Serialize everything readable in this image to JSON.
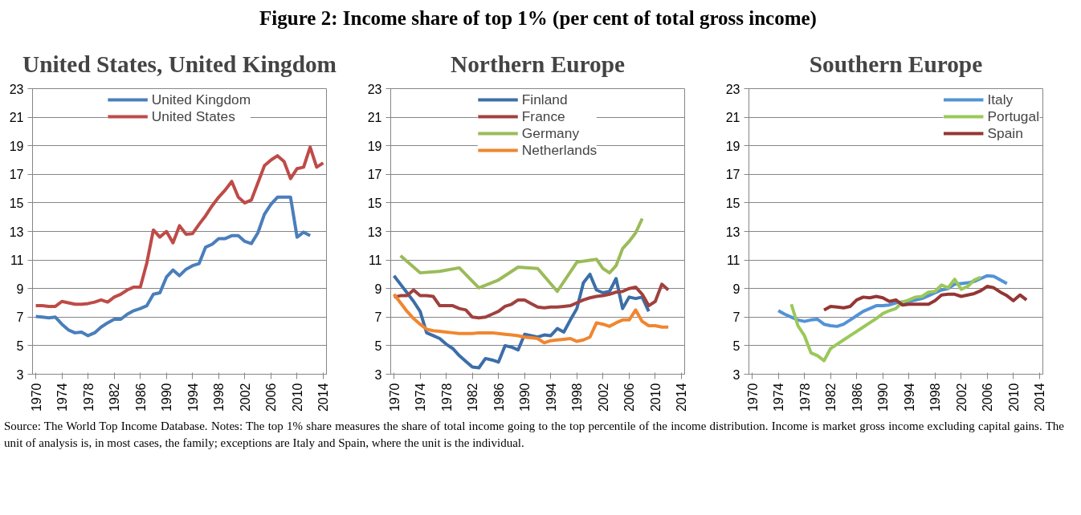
{
  "chart_data": [
    {
      "type": "line",
      "title": "United States, United Kingdom",
      "annotations": [
        "Figure 2: Income share of top 1% (per cent of total gross income)",
        "Source: The World Top Income Database. Notes: The top 1% share measures the share of total income going to the top percentile of the income distribution. Income is market gross income excluding capital gains. The unit of analysis is, in most cases, the family; exceptions are Italy and Spain, where the unit is the individual."
      ],
      "x": [
        1970,
        1971,
        1972,
        1973,
        1974,
        1975,
        1976,
        1977,
        1978,
        1979,
        1980,
        1981,
        1982,
        1983,
        1984,
        1985,
        1986,
        1987,
        1988,
        1989,
        1990,
        1991,
        1992,
        1993,
        1994,
        1995,
        1996,
        1997,
        1998,
        1999,
        2000,
        2001,
        2002,
        2003,
        2004,
        2005,
        2006,
        2007,
        2008,
        2009,
        2010,
        2011,
        2012,
        2013,
        2014
      ],
      "xlim": [
        1969.5,
        2014.5
      ],
      "xticks": [
        1970,
        1974,
        1978,
        1982,
        1986,
        1990,
        1994,
        1998,
        2002,
        2006,
        2010,
        2014
      ],
      "ylim": [
        3,
        23
      ],
      "yticks": [
        3,
        5,
        7,
        9,
        11,
        13,
        15,
        17,
        19,
        21,
        23
      ],
      "grid": "y",
      "legend": "top",
      "series": [
        {
          "name": "United Kingdom",
          "color": "#4a7ebb",
          "values": [
            7.05,
            7.0,
            6.95,
            7.0,
            6.5,
            6.1,
            5.9,
            5.95,
            5.7,
            5.9,
            6.3,
            6.6,
            6.85,
            6.85,
            7.2,
            7.45,
            7.6,
            7.8,
            8.6,
            8.7,
            9.8,
            10.3,
            9.9,
            10.35,
            10.6,
            10.75,
            11.9,
            12.1,
            12.5,
            12.5,
            12.7,
            12.7,
            12.3,
            12.15,
            12.9,
            14.2,
            14.9,
            15.4,
            15.4,
            15.4,
            12.6,
            12.95,
            12.7,
            null,
            null
          ]
        },
        {
          "name": "United States",
          "color": "#be4b48",
          "values": [
            7.8,
            7.8,
            7.75,
            7.75,
            8.1,
            8.0,
            7.9,
            7.9,
            7.95,
            8.05,
            8.2,
            8.05,
            8.4,
            8.6,
            8.9,
            9.1,
            9.1,
            10.8,
            13.1,
            12.6,
            13.0,
            12.2,
            13.4,
            12.8,
            12.85,
            13.5,
            14.1,
            14.8,
            15.4,
            15.9,
            16.5,
            15.4,
            15.0,
            15.2,
            16.4,
            17.6,
            18.0,
            18.3,
            17.9,
            16.7,
            17.4,
            17.5,
            18.9,
            17.5,
            17.8
          ]
        }
      ]
    },
    {
      "type": "line",
      "title": "Northern Europe",
      "x": [
        1970,
        1971,
        1972,
        1973,
        1974,
        1975,
        1976,
        1977,
        1978,
        1979,
        1980,
        1981,
        1982,
        1983,
        1984,
        1985,
        1986,
        1987,
        1988,
        1989,
        1990,
        1991,
        1992,
        1993,
        1994,
        1995,
        1996,
        1997,
        1998,
        1999,
        2000,
        2001,
        2002,
        2003,
        2004,
        2005,
        2006,
        2007,
        2008,
        2009,
        2010,
        2011,
        2012
      ],
      "xlim": [
        1969.5,
        2014.5
      ],
      "xticks": [
        1970,
        1974,
        1978,
        1982,
        1986,
        1990,
        1994,
        1998,
        2002,
        2006,
        2010,
        2014
      ],
      "ylim": [
        3,
        23
      ],
      "yticks": [
        3,
        5,
        7,
        9,
        11,
        13,
        15,
        17,
        19,
        21,
        23
      ],
      "grid": "y",
      "legend": "top",
      "series": [
        {
          "name": "Finland",
          "color": "#3c6ea8",
          "values": [
            9.9,
            9.3,
            8.7,
            8.1,
            7.4,
            5.9,
            5.7,
            5.5,
            5.1,
            4.8,
            4.3,
            3.9,
            3.5,
            3.45,
            4.1,
            4.0,
            3.85,
            5.0,
            4.9,
            4.7,
            5.8,
            5.7,
            5.6,
            5.75,
            5.7,
            6.2,
            5.95,
            6.8,
            7.6,
            9.4,
            10.0,
            8.9,
            8.7,
            8.8,
            9.7,
            7.6,
            8.4,
            8.3,
            8.4,
            7.4,
            null,
            null,
            null
          ]
        },
        {
          "name": "France",
          "color": "#a0413e",
          "values": [
            8.4,
            8.5,
            8.5,
            8.9,
            8.5,
            8.5,
            8.45,
            7.8,
            7.8,
            7.8,
            7.6,
            7.5,
            7.0,
            6.95,
            7.0,
            7.2,
            7.4,
            7.75,
            7.9,
            8.2,
            8.2,
            7.95,
            7.7,
            7.65,
            7.7,
            7.7,
            7.75,
            7.8,
            8.0,
            8.2,
            8.35,
            8.45,
            8.5,
            8.6,
            8.75,
            8.8,
            9.0,
            9.1,
            8.6,
            7.8,
            8.1,
            9.3,
            8.9
          ]
        },
        {
          "name": "Germany",
          "color": "#9bbb59",
          "x": [
            1971,
            1974,
            1977,
            1980,
            1983,
            1986,
            1989,
            1992,
            1995,
            1998,
            2001,
            2002,
            2003,
            2004,
            2005,
            2006,
            2007,
            2008
          ],
          "values": [
            11.3,
            10.1,
            10.2,
            10.45,
            9.05,
            9.6,
            10.5,
            10.4,
            8.8,
            10.85,
            11.05,
            10.4,
            10.1,
            10.6,
            11.8,
            12.3,
            12.9,
            13.9
          ]
        },
        {
          "name": "Netherlands",
          "color": "#f08630",
          "values": [
            8.6,
            8.0,
            7.4,
            6.9,
            6.5,
            6.15,
            6.05,
            6.0,
            5.95,
            5.9,
            5.85,
            5.85,
            5.85,
            5.9,
            5.9,
            5.9,
            5.85,
            5.8,
            5.75,
            5.7,
            5.6,
            5.55,
            5.5,
            5.2,
            5.35,
            5.4,
            5.45,
            5.5,
            5.3,
            5.4,
            5.6,
            6.6,
            6.5,
            6.35,
            6.6,
            6.8,
            6.8,
            7.5,
            6.7,
            6.4,
            6.4,
            6.3,
            6.3
          ]
        }
      ]
    },
    {
      "type": "line",
      "title": "Southern Europe",
      "x": [
        1974,
        1975,
        1976,
        1977,
        1978,
        1979,
        1980,
        1981,
        1982,
        1983,
        1984,
        1985,
        1986,
        1987,
        1988,
        1989,
        1990,
        1991,
        1992,
        1993,
        1994,
        1995,
        1996,
        1997,
        1998,
        1999,
        2000,
        2001,
        2002,
        2003,
        2004,
        2005,
        2006,
        2007,
        2008,
        2009,
        2010,
        2011,
        2012
      ],
      "xlim": [
        1969.5,
        2014.5
      ],
      "xticks": [
        1970,
        1974,
        1978,
        1982,
        1986,
        1990,
        1994,
        1998,
        2002,
        2006,
        2010,
        2014
      ],
      "ylim": [
        3,
        23
      ],
      "yticks": [
        3,
        5,
        7,
        9,
        11,
        13,
        15,
        17,
        19,
        21,
        23
      ],
      "grid": "y",
      "legend": "top right",
      "series": [
        {
          "name": "Italy",
          "color": "#5393d6",
          "values": [
            7.45,
            7.2,
            7.0,
            6.8,
            6.7,
            6.8,
            6.85,
            6.5,
            6.4,
            6.35,
            6.5,
            6.8,
            7.1,
            7.4,
            7.6,
            7.8,
            7.8,
            7.85,
            8.0,
            8.05,
            8.1,
            8.2,
            8.3,
            8.5,
            8.7,
            8.9,
            9.0,
            9.3,
            9.35,
            9.4,
            9.5,
            9.7,
            9.9,
            9.85,
            9.6,
            9.35,
            null,
            null,
            null
          ]
        },
        {
          "name": "Portugal",
          "color": "#9bc85a",
          "values": [
            null,
            null,
            7.9,
            6.4,
            5.7,
            4.5,
            4.3,
            3.95,
            4.8,
            5.1,
            5.4,
            5.7,
            6.0,
            6.3,
            6.6,
            6.9,
            7.25,
            7.45,
            7.6,
            8.05,
            8.2,
            8.4,
            8.45,
            8.75,
            8.8,
            9.25,
            9.05,
            9.65,
            8.95,
            9.15,
            9.6,
            9.8,
            null,
            null,
            null,
            null,
            null,
            null,
            null
          ]
        },
        {
          "name": "Spain",
          "color": "#943634",
          "values": [
            null,
            null,
            null,
            null,
            null,
            null,
            null,
            7.5,
            7.75,
            7.7,
            7.65,
            7.75,
            8.2,
            8.4,
            8.35,
            8.45,
            8.35,
            8.1,
            8.2,
            7.85,
            7.9,
            7.9,
            7.9,
            7.9,
            8.15,
            8.55,
            8.6,
            8.6,
            8.45,
            8.55,
            8.65,
            8.85,
            9.15,
            9.05,
            8.75,
            8.5,
            8.15,
            8.55,
            8.2
          ]
        }
      ]
    }
  ]
}
